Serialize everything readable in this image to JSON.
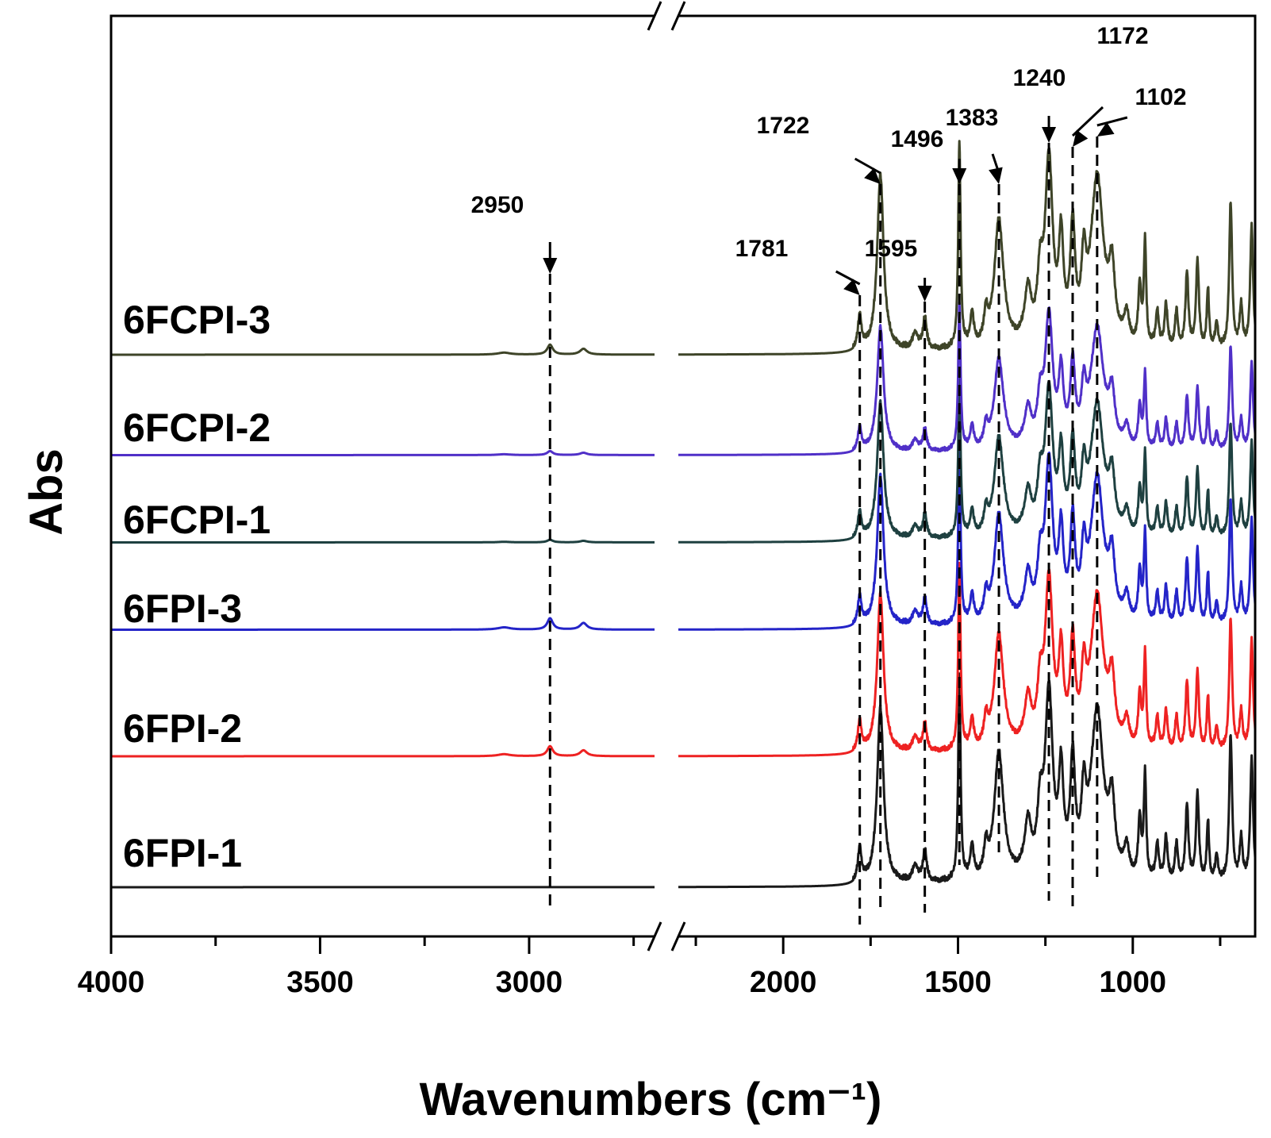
{
  "chart_data": {
    "type": "line",
    "title": "",
    "xlabel": "Wavenumbers (cm⁻¹)",
    "ylabel": "Abs",
    "x_axis_reversed": true,
    "x_break": [
      2700,
      2300
    ],
    "xlim": [
      4000,
      650
    ],
    "x_ticks": [
      "4000",
      "3500",
      "3000",
      "2000",
      "1500",
      "1000"
    ],
    "grid": false,
    "peak_marks": [
      {
        "label": "2950",
        "x": 2950
      },
      {
        "label": "1781",
        "x": 1781
      },
      {
        "label": "1722",
        "x": 1722
      },
      {
        "label": "1595",
        "x": 1595
      },
      {
        "label": "1496",
        "x": 1496
      },
      {
        "label": "1383",
        "x": 1383
      },
      {
        "label": "1240",
        "x": 1240
      },
      {
        "label": "1172",
        "x": 1172
      },
      {
        "label": "1102",
        "x": 1102
      }
    ],
    "series": [
      {
        "name": "6FPI-1",
        "color": "#1a1a1a",
        "offset": 0.0,
        "scale": 1.05,
        "ch_strength": 0.0
      },
      {
        "name": "6FPI-2",
        "color": "#ee2222",
        "offset": 1.5,
        "scale": 0.95,
        "ch_strength": 0.5
      },
      {
        "name": "6FPI-3",
        "color": "#2424c8",
        "offset": 2.95,
        "scale": 0.9,
        "ch_strength": 0.6
      },
      {
        "name": "6FCPI-1",
        "color": "#1e4040",
        "offset": 3.95,
        "scale": 0.82,
        "ch_strength": 0.15
      },
      {
        "name": "6FCPI-2",
        "color": "#5030c8",
        "offset": 4.95,
        "scale": 0.75,
        "ch_strength": 0.25
      },
      {
        "name": "6FCPI-3",
        "color": "#3e4428",
        "offset": 6.1,
        "scale": 1.05,
        "ch_strength": 0.45
      }
    ]
  }
}
